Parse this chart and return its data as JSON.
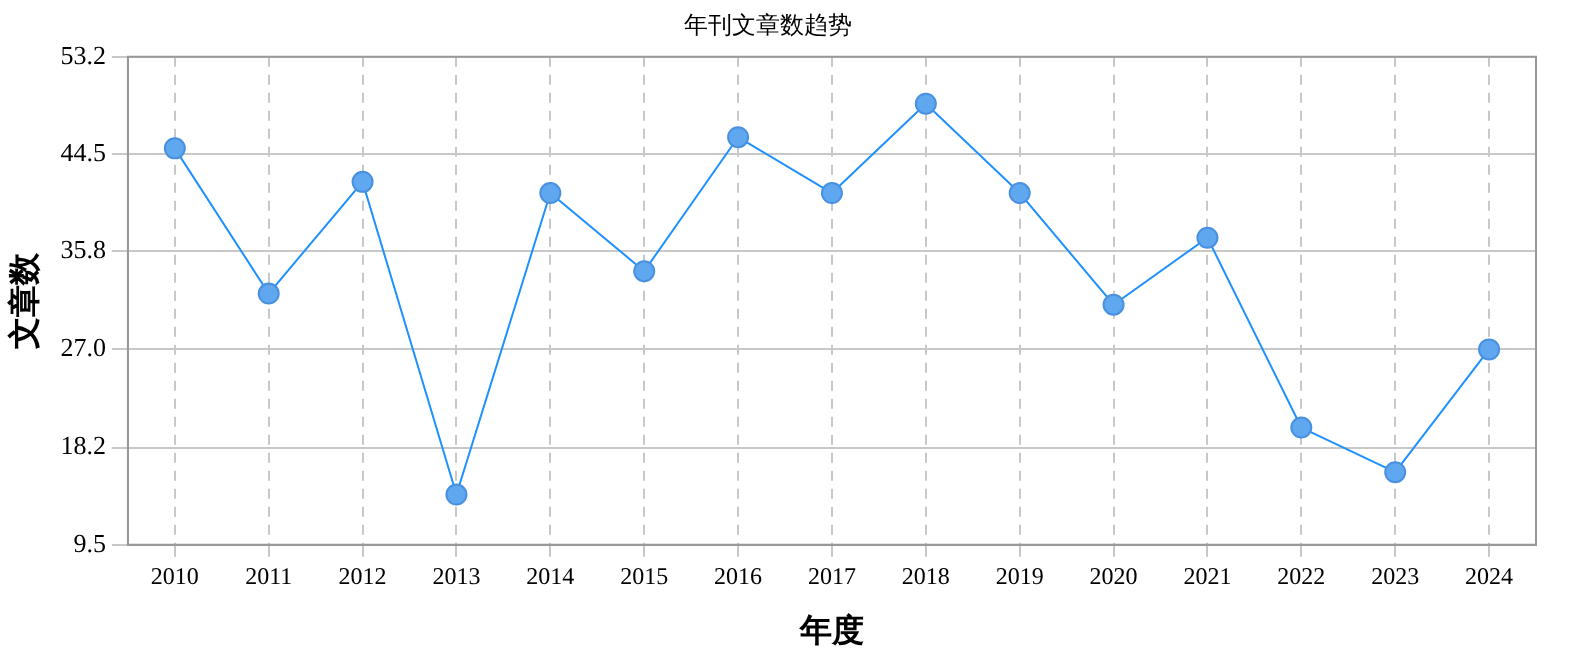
{
  "chart_data": {
    "type": "line",
    "title": "年刊文章数趋势",
    "xlabel": "年度",
    "ylabel": "文章数",
    "categories": [
      "2010",
      "2011",
      "2012",
      "2013",
      "2014",
      "2015",
      "2016",
      "2017",
      "2018",
      "2019",
      "2020",
      "2021",
      "2022",
      "2023",
      "2024"
    ],
    "series": [
      {
        "color": "#1e90ff",
        "values": [
          45,
          32,
          42,
          14,
          41,
          34,
          46,
          41,
          49,
          41,
          31,
          37,
          20,
          16,
          27
        ]
      }
    ],
    "ylim": [
      9.5,
      53.2
    ],
    "yticks": [
      9.5,
      18.2,
      {
        "value": 27,
        "label": "27.0"
      },
      {
        "value": 35.8,
        "label": "35.8"
      },
      44.5,
      53.2
    ],
    "grid": true,
    "legend": false,
    "marker": "circle",
    "line_style": "solid"
  }
}
